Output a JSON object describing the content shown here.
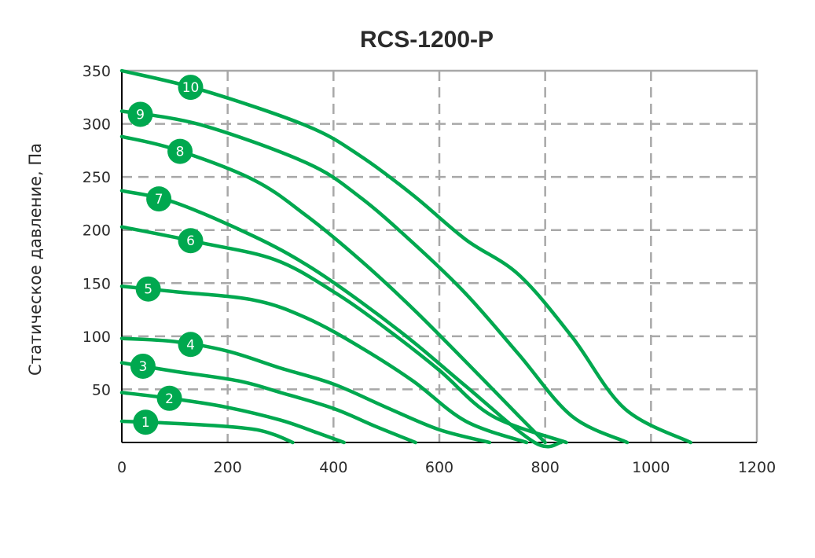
{
  "chart_data": {
    "type": "line",
    "title": "RCS-1200-P",
    "xlabel": "",
    "ylabel": "Статическое давление, Па",
    "xlim": [
      0,
      1200
    ],
    "ylim": [
      0,
      350
    ],
    "x_ticks": [
      "0",
      "200",
      "400",
      "600",
      "800",
      "1000",
      "1200"
    ],
    "y_ticks": [
      "50",
      "100",
      "150",
      "200",
      "250",
      "300",
      "350"
    ],
    "grid": true,
    "line_color": "#00a84f",
    "series": [
      {
        "name": "1",
        "points": [
          [
            0,
            20
          ],
          [
            100,
            18
          ],
          [
            200,
            15
          ],
          [
            255,
            12
          ],
          [
            290,
            7
          ],
          [
            323,
            0
          ]
        ]
      },
      {
        "name": "2",
        "points": [
          [
            0,
            47
          ],
          [
            100,
            41
          ],
          [
            200,
            33
          ],
          [
            300,
            21
          ],
          [
            370,
            9
          ],
          [
            420,
            0
          ]
        ]
      },
      {
        "name": "3",
        "points": [
          [
            0,
            75
          ],
          [
            100,
            67
          ],
          [
            220,
            58
          ],
          [
            300,
            47
          ],
          [
            400,
            32
          ],
          [
            480,
            15
          ],
          [
            555,
            0
          ]
        ]
      },
      {
        "name": "4",
        "points": [
          [
            0,
            98
          ],
          [
            100,
            95
          ],
          [
            200,
            86
          ],
          [
            300,
            70
          ],
          [
            400,
            55
          ],
          [
            500,
            33
          ],
          [
            600,
            12
          ],
          [
            695,
            0
          ]
        ]
      },
      {
        "name": "5",
        "points": [
          [
            0,
            147
          ],
          [
            100,
            142
          ],
          [
            250,
            134
          ],
          [
            350,
            117
          ],
          [
            450,
            90
          ],
          [
            550,
            58
          ],
          [
            650,
            20
          ],
          [
            765,
            0
          ]
        ]
      },
      {
        "name": "6",
        "points": [
          [
            0,
            203
          ],
          [
            150,
            188
          ],
          [
            290,
            172
          ],
          [
            400,
            142
          ],
          [
            500,
            107
          ],
          [
            600,
            68
          ],
          [
            700,
            25
          ],
          [
            840,
            0
          ]
        ]
      },
      {
        "name": "7",
        "points": [
          [
            0,
            237
          ],
          [
            100,
            226
          ],
          [
            250,
            194
          ],
          [
            350,
            167
          ],
          [
            450,
            133
          ],
          [
            550,
            95
          ],
          [
            650,
            53
          ],
          [
            780,
            0
          ],
          [
            830,
            0
          ]
        ]
      },
      {
        "name": "8",
        "points": [
          [
            0,
            288
          ],
          [
            100,
            276
          ],
          [
            250,
            247
          ],
          [
            350,
            213
          ],
          [
            450,
            172
          ],
          [
            550,
            126
          ],
          [
            650,
            76
          ],
          [
            750,
            25
          ],
          [
            800,
            0
          ]
        ]
      },
      {
        "name": "9",
        "points": [
          [
            0,
            312
          ],
          [
            150,
            299
          ],
          [
            350,
            263
          ],
          [
            450,
            231
          ],
          [
            550,
            188
          ],
          [
            650,
            140
          ],
          [
            750,
            83
          ],
          [
            850,
            25
          ],
          [
            955,
            0
          ]
        ]
      },
      {
        "name": "10",
        "points": [
          [
            0,
            350
          ],
          [
            150,
            332
          ],
          [
            350,
            298
          ],
          [
            450,
            270
          ],
          [
            550,
            233
          ],
          [
            650,
            191
          ],
          [
            750,
            158
          ],
          [
            850,
            100
          ],
          [
            950,
            32
          ],
          [
            1075,
            0
          ]
        ]
      }
    ],
    "annotations": [
      "1",
      "2",
      "3",
      "4",
      "5",
      "6",
      "7",
      "8",
      "9",
      "10"
    ]
  }
}
